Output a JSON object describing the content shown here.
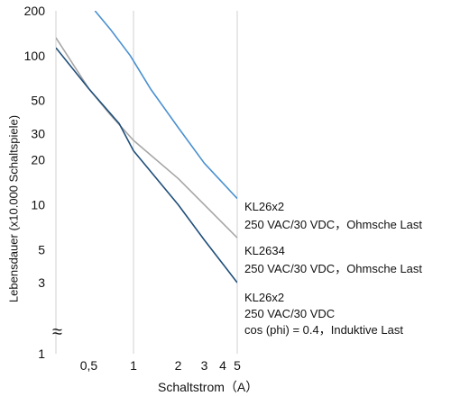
{
  "chart_data": {
    "type": "line",
    "xlabel": "Schaltstrom（A）",
    "ylabel": "Lebensdauer (x10.000 Schaltspiele)",
    "x_scale": "log",
    "y_scale": "log",
    "xlim": [
      0.3,
      5
    ],
    "ylim": [
      1,
      200
    ],
    "x_ticks": [
      {
        "value": 0.5,
        "label": "0,5"
      },
      {
        "value": 1,
        "label": "1"
      },
      {
        "value": 2,
        "label": "2"
      },
      {
        "value": 3,
        "label": "3"
      },
      {
        "value": 4,
        "label": "4"
      },
      {
        "value": 5,
        "label": "5"
      }
    ],
    "y_ticks": [
      {
        "value": 1,
        "label": "1"
      },
      {
        "value": 3,
        "label": "3"
      },
      {
        "value": 5,
        "label": "5"
      },
      {
        "value": 10,
        "label": "10"
      },
      {
        "value": 20,
        "label": "20"
      },
      {
        "value": 30,
        "label": "30"
      },
      {
        "value": 50,
        "label": "50"
      },
      {
        "value": 100,
        "label": "100"
      },
      {
        "value": 200,
        "label": "200"
      }
    ],
    "vertical_gridlines": [
      1,
      5
    ],
    "axis_break_symbol": "≈",
    "series": [
      {
        "name_lines": [
          "KL26x2",
          "250 VAC/30 VDC，Ohmsche Last"
        ],
        "color": "#4a90d0",
        "x": [
          0.55,
          0.7,
          0.95,
          1.3,
          2,
          3,
          5
        ],
        "y": [
          200,
          150,
          100,
          60,
          33,
          19,
          11
        ]
      },
      {
        "name_lines": [
          "KL2634",
          "250 VAC/30 VDC，Ohmsche Last"
        ],
        "color": "#a6a6a6",
        "x": [
          0.3,
          0.5,
          0.7,
          1,
          2,
          3,
          5
        ],
        "y": [
          132,
          60,
          40,
          27,
          15,
          10,
          6
        ]
      },
      {
        "name_lines": [
          "KL26x2",
          "250 VAC/30 VDC",
          "cos (phi) = 0.4，Induktive Last"
        ],
        "color": "#1f4e79",
        "x": [
          0.3,
          0.5,
          0.8,
          1,
          2,
          3,
          5
        ],
        "y": [
          113,
          60,
          35,
          23,
          10,
          5.8,
          3
        ]
      }
    ]
  }
}
